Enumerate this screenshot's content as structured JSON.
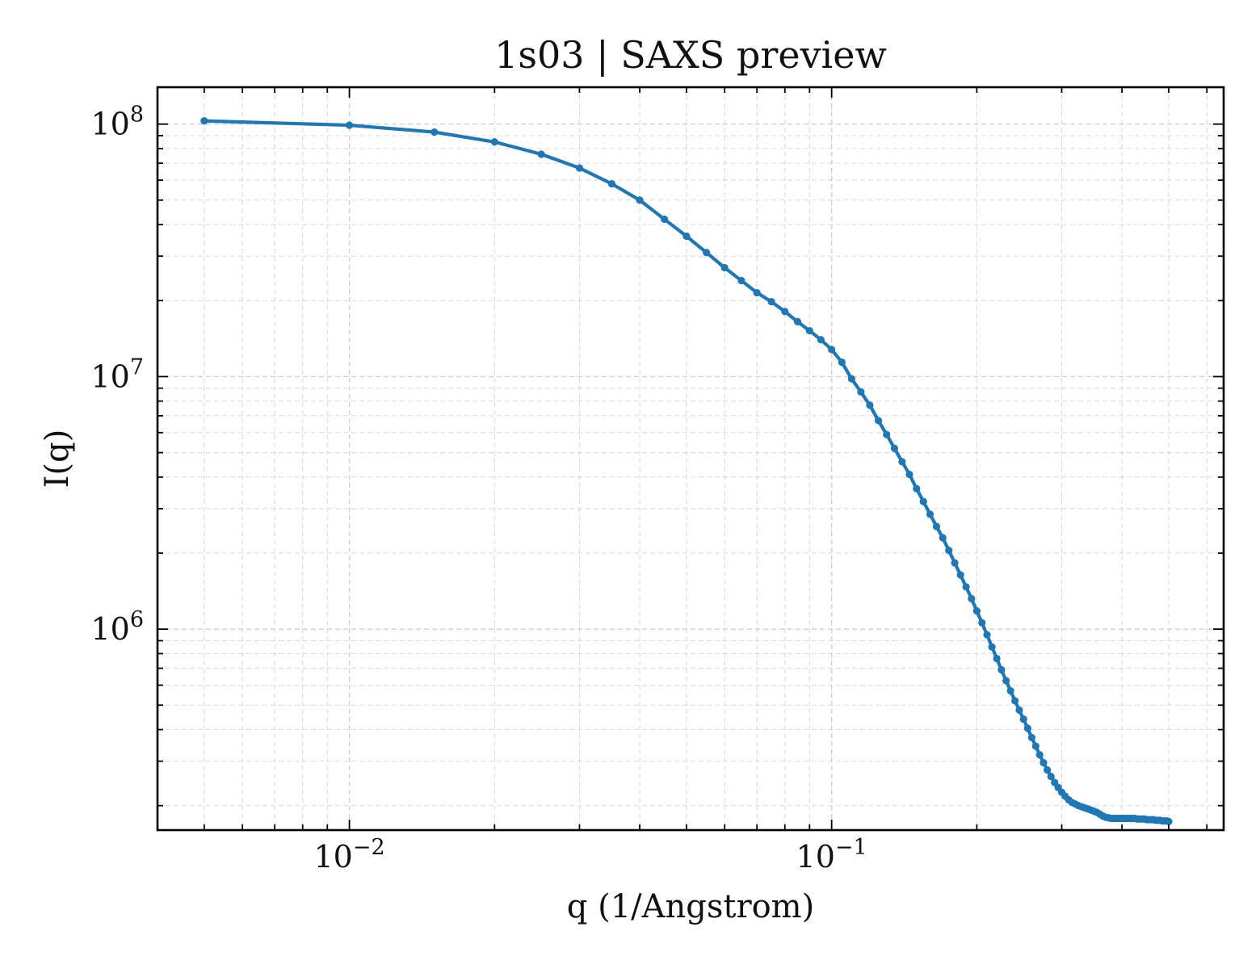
{
  "chart_data": {
    "type": "line",
    "title": "1s03 | SAXS preview",
    "xlabel": "q (1/Angstrom)",
    "ylabel": "I(q)",
    "x_scale": "log",
    "y_scale": "log",
    "xlim": [
      0.004,
      0.65
    ],
    "ylim": [
      160000,
      140000000
    ],
    "grid": true,
    "legend": "none",
    "x_ticks": [
      {
        "value": 0.01,
        "base": "10",
        "exp": "−2"
      },
      {
        "value": 0.1,
        "base": "10",
        "exp": "−1"
      }
    ],
    "y_ticks": [
      {
        "value": 1000000,
        "base": "10",
        "exp": "6"
      },
      {
        "value": 10000000,
        "base": "10",
        "exp": "7"
      },
      {
        "value": 100000000,
        "base": "10",
        "exp": "8"
      }
    ],
    "line_color": "#1f77b4",
    "series": [
      {
        "x": [
          0.005,
          0.01,
          0.015,
          0.02,
          0.025,
          0.03,
          0.035,
          0.04,
          0.045,
          0.05,
          0.055,
          0.06,
          0.065,
          0.07,
          0.075,
          0.08,
          0.085,
          0.09,
          0.095,
          0.1,
          0.105,
          0.11,
          0.115,
          0.12,
          0.125,
          0.13,
          0.135,
          0.14,
          0.145,
          0.15,
          0.155,
          0.16,
          0.165,
          0.17,
          0.175,
          0.18,
          0.185,
          0.19,
          0.195,
          0.2,
          0.205,
          0.21,
          0.215,
          0.22,
          0.225,
          0.23,
          0.235,
          0.24,
          0.245,
          0.25,
          0.255,
          0.26,
          0.265,
          0.27,
          0.275,
          0.28,
          0.285,
          0.29,
          0.295,
          0.3,
          0.305,
          0.31,
          0.315,
          0.32,
          0.325,
          0.33,
          0.335,
          0.34,
          0.345,
          0.35,
          0.355,
          0.36,
          0.365,
          0.37,
          0.375,
          0.38,
          0.385,
          0.39,
          0.395,
          0.4,
          0.405,
          0.41,
          0.415,
          0.42,
          0.425,
          0.43,
          0.435,
          0.44,
          0.445,
          0.45,
          0.455,
          0.46,
          0.465,
          0.47,
          0.475,
          0.48,
          0.485,
          0.49,
          0.495,
          0.5
        ],
        "y": [
          103000000,
          99000000,
          93000000,
          85000000,
          76000000,
          67000000,
          58000000,
          50000000,
          42000000,
          36000000,
          31000000,
          27000000,
          24000000,
          21500000,
          19800000,
          18100000,
          16500000,
          15200000,
          14000000,
          12800000,
          11400000,
          9800000,
          8700000,
          7700000,
          6700000,
          5900000,
          5200000,
          4600000,
          4100000,
          3600000,
          3200000,
          2850000,
          2550000,
          2300000,
          2050000,
          1830000,
          1640000,
          1470000,
          1320000,
          1180000,
          1060000,
          950000,
          850000,
          765000,
          690000,
          625000,
          570000,
          520000,
          478000,
          440000,
          405000,
          372000,
          344000,
          318000,
          296000,
          277000,
          261000,
          247000,
          236000,
          226000,
          218000,
          211000,
          206000,
          203000,
          200000,
          198000,
          196000,
          194000,
          192000,
          190000,
          188000,
          185000,
          182000,
          180000,
          179000,
          178000,
          178000,
          178000,
          178000,
          178000,
          178000,
          178000,
          178000,
          178000,
          178000,
          177000,
          177000,
          177000,
          177000,
          176000,
          176000,
          176000,
          176000,
          175000,
          175000,
          175000,
          174000,
          174000,
          174000,
          173000
        ]
      }
    ]
  }
}
